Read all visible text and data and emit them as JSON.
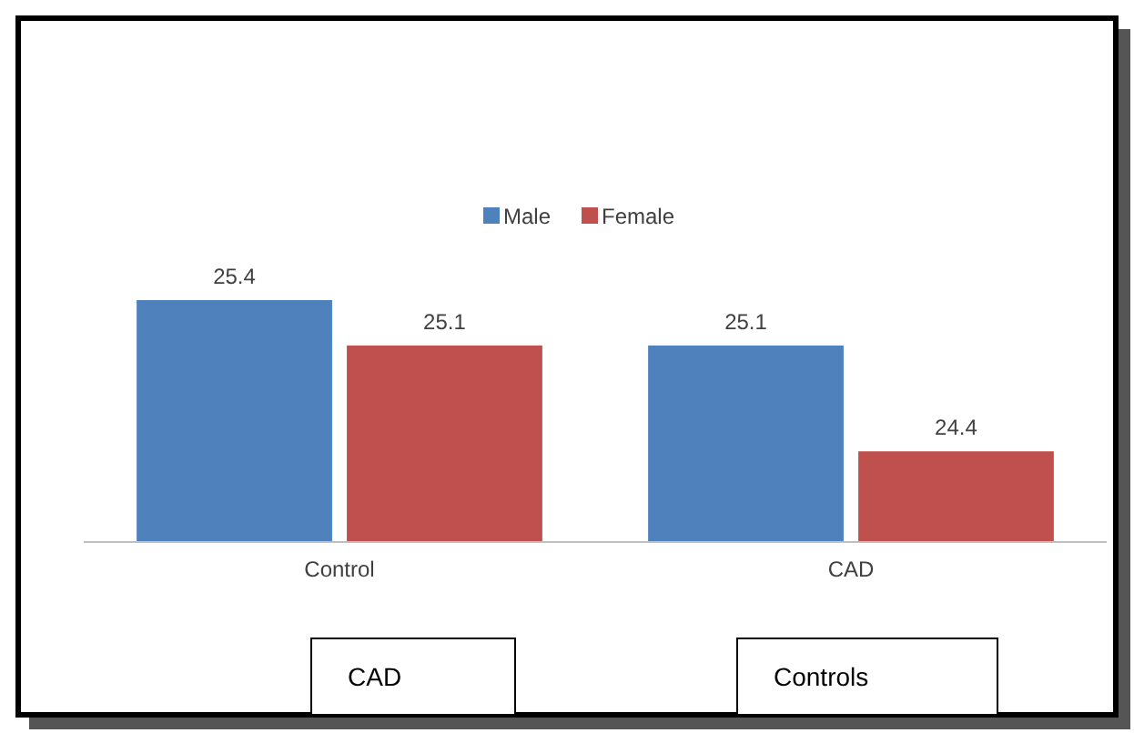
{
  "chart_data": {
    "type": "bar",
    "categories": [
      "Control",
      "CAD"
    ],
    "series": [
      {
        "name": "Male",
        "color": "#4f81bd",
        "values": [
          25.4,
          25.1
        ]
      },
      {
        "name": "Female",
        "color": "#c0504d",
        "values": [
          25.1,
          24.4
        ]
      }
    ],
    "ylim": [
      23.8,
      25.4
    ],
    "data_labels": true,
    "legend": "top",
    "grid": false,
    "annotations": [
      "CAD",
      "Controls"
    ]
  }
}
